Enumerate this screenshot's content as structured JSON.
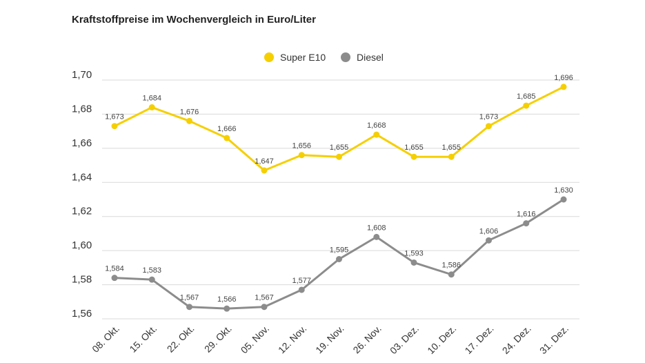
{
  "chart_data": {
    "type": "line",
    "title": "Kraftstoffpreise im Wochenvergleich in Euro/Liter",
    "xlabel": "",
    "ylabel": "",
    "categories": [
      "08. Okt.",
      "15. Okt.",
      "22. Okt.",
      "29. Okt.",
      "05. Nov.",
      "12. Nov.",
      "19. Nov.",
      "26. Nov.",
      "03. Dez.",
      "10. Dez.",
      "17. Dez.",
      "24. Dez.",
      "31. Dez."
    ],
    "series": [
      {
        "name": "Super E10",
        "color": "#f5cf00",
        "values": [
          1.673,
          1.684,
          1.676,
          1.666,
          1.647,
          1.656,
          1.655,
          1.668,
          1.655,
          1.655,
          1.673,
          1.685,
          1.696
        ],
        "labels": [
          "1,673",
          "1,684",
          "1,676",
          "1,666",
          "1,647",
          "1,656",
          "1,655",
          "1,668",
          "1,655",
          "1,655",
          "1,673",
          "1,685",
          "1,696"
        ]
      },
      {
        "name": "Diesel",
        "color": "#8c8c8c",
        "values": [
          1.584,
          1.583,
          1.567,
          1.566,
          1.567,
          1.577,
          1.595,
          1.608,
          1.593,
          1.586,
          1.606,
          1.616,
          1.63
        ],
        "labels": [
          "1,584",
          "1,583",
          "1,567",
          "1,566",
          "1,567",
          "1,577",
          "1,595",
          "1,608",
          "1,593",
          "1,586",
          "1,606",
          "1,616",
          "1,630"
        ]
      }
    ],
    "ylim": [
      1.56,
      1.7
    ],
    "yticks": [
      1.56,
      1.58,
      1.6,
      1.62,
      1.64,
      1.66,
      1.68,
      1.7
    ],
    "ytick_labels": [
      "1,56",
      "1,58",
      "1,60",
      "1,62",
      "1,64",
      "1,66",
      "1,68",
      "1,70"
    ],
    "grid": true,
    "legend_position": "top-center"
  }
}
